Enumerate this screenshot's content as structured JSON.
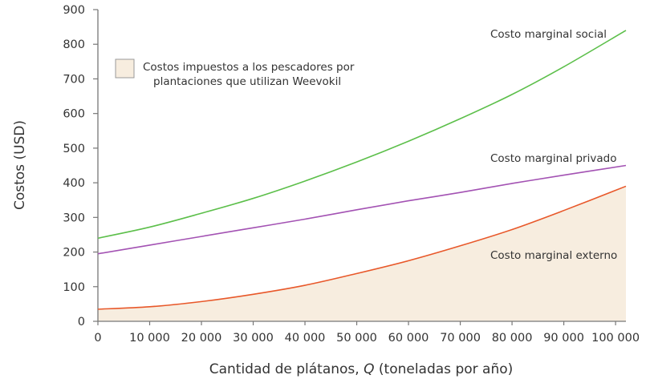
{
  "chart_data": {
    "type": "line",
    "xlabel": "Cantidad de plátanos, Q (toneladas por año)",
    "xlabel_parts": [
      "Cantidad de plátanos, ",
      "Q",
      " (toneladas por año)"
    ],
    "ylabel": "Costos (USD)",
    "xlim": [
      0,
      102000
    ],
    "ylim": [
      0,
      900
    ],
    "x_ticks": [
      0,
      10000,
      20000,
      30000,
      40000,
      50000,
      60000,
      70000,
      80000,
      90000,
      100000
    ],
    "x_tick_labels": [
      "0",
      "10 000",
      "20 000",
      "30 000",
      "40 000",
      "50 000",
      "60 000",
      "70 000",
      "80 000",
      "90 000",
      "100 000"
    ],
    "y_ticks": [
      0,
      100,
      200,
      300,
      400,
      500,
      600,
      700,
      800,
      900
    ],
    "y_tick_labels": [
      "0",
      "100",
      "200",
      "300",
      "400",
      "500",
      "600",
      "700",
      "800",
      "900"
    ],
    "grid": false,
    "x": [
      0,
      10000,
      20000,
      30000,
      40000,
      50000,
      60000,
      70000,
      80000,
      90000,
      102000
    ],
    "series": [
      {
        "name": "Costo marginal social",
        "color": "#5cbf4a",
        "values": [
          240,
          272,
          312,
          355,
          405,
          460,
          520,
          585,
          655,
          735,
          840
        ]
      },
      {
        "name": "Costo marginal privado",
        "color": "#a352b3",
        "values": [
          195,
          220,
          245,
          270,
          295,
          322,
          348,
          372,
          398,
          422,
          450
        ]
      },
      {
        "name": "Costo marginal externo",
        "color": "#e8582a",
        "values": [
          35,
          42,
          57,
          78,
          104,
          138,
          175,
          218,
          265,
          320,
          390
        ]
      }
    ],
    "shaded_area": {
      "under_series": "Costo marginal externo",
      "color": "#f7eddf"
    },
    "legend": {
      "position": "top-left",
      "entries": [
        {
          "lines": [
            "Costos impuestos a los pescadores por",
            "plantaciones que utilizan Weevokil"
          ],
          "color": "#f7eddf"
        }
      ]
    }
  }
}
